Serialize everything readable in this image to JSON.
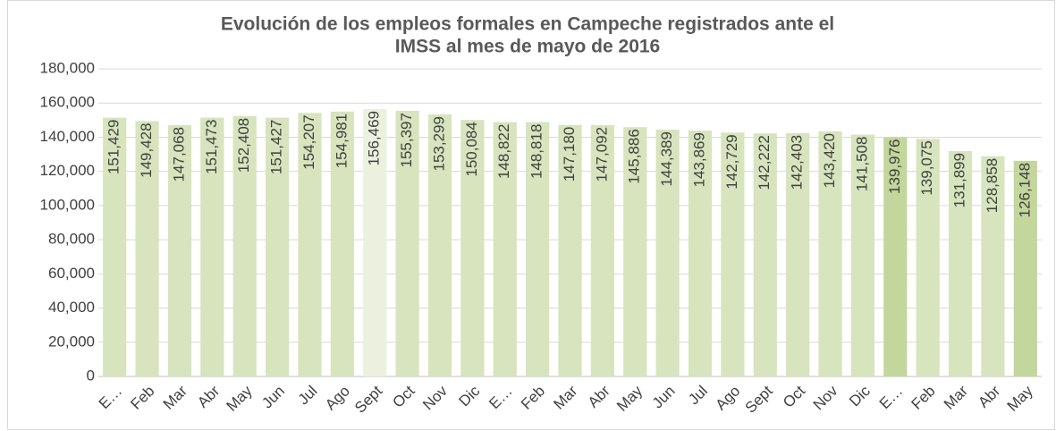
{
  "chart_data": {
    "type": "bar",
    "title": [
      "Evolución de los empleos formales en Campeche registrados ante el",
      "IMSS al mes de mayo de 2016"
    ],
    "categories": [
      "E…",
      "Feb",
      "Mar",
      "Abr",
      "May",
      "Jun",
      "Jul",
      "Ago",
      "Sept",
      "Oct",
      "Nov",
      "Dic",
      "E…",
      "Feb",
      "Mar",
      "Abr",
      "May",
      "Jun",
      "Jul",
      "Ago",
      "Sept",
      "Oct",
      "Nov",
      "Dic",
      "E…",
      "Feb",
      "Mar",
      "Abr",
      "May"
    ],
    "values": [
      151429,
      149428,
      147068,
      151473,
      152408,
      151427,
      154207,
      154981,
      156469,
      155397,
      153299,
      150084,
      148822,
      148818,
      147180,
      147092,
      145886,
      144389,
      143869,
      142729,
      142222,
      142403,
      143420,
      141508,
      139976,
      139075,
      131899,
      128858,
      126148
    ],
    "value_labels": [
      "151,429",
      "149,428",
      "147,068",
      "151,473",
      "152,408",
      "151,427",
      "154,207",
      "154,981",
      "156,469",
      "155,397",
      "153,299",
      "150,084",
      "148,822",
      "148,818",
      "147,180",
      "147,092",
      "145,886",
      "144,389",
      "143,869",
      "142,729",
      "142,222",
      "142,403",
      "143,420",
      "141,508",
      "139,976",
      "139,075",
      "131,899",
      "128,858",
      "126,148"
    ],
    "colors": [
      "#d7e4bd",
      "#d7e4bd",
      "#d7e4bd",
      "#d7e4bd",
      "#d7e4bd",
      "#d7e4bd",
      "#d7e4bd",
      "#d7e4bd",
      "#ebf1de",
      "#d7e4bd",
      "#d7e4bd",
      "#d7e4bd",
      "#d7e4bd",
      "#d7e4bd",
      "#d7e4bd",
      "#d7e4bd",
      "#d7e4bd",
      "#d7e4bd",
      "#d7e4bd",
      "#d7e4bd",
      "#d7e4bd",
      "#d7e4bd",
      "#d7e4bd",
      "#d7e4bd",
      "#c3d69b",
      "#d7e4bd",
      "#d7e4bd",
      "#d7e4bd",
      "#c3d69b"
    ],
    "ylim": [
      0,
      180000
    ],
    "yticks": [
      0,
      {
        "value": 20000,
        "label": "20,000"
      },
      {
        "value": 40000,
        "label": "40,000"
      },
      {
        "value": 60000,
        "label": "60,000"
      },
      {
        "value": 80000,
        "label": "80,000"
      },
      {
        "value": 100000,
        "label": "100,000"
      },
      {
        "value": 120000,
        "label": "120,000"
      },
      {
        "value": 140000,
        "label": "140,000"
      },
      {
        "value": 160000,
        "label": "160,000"
      },
      {
        "value": 180000,
        "label": "180,000"
      }
    ],
    "grid": true
  }
}
